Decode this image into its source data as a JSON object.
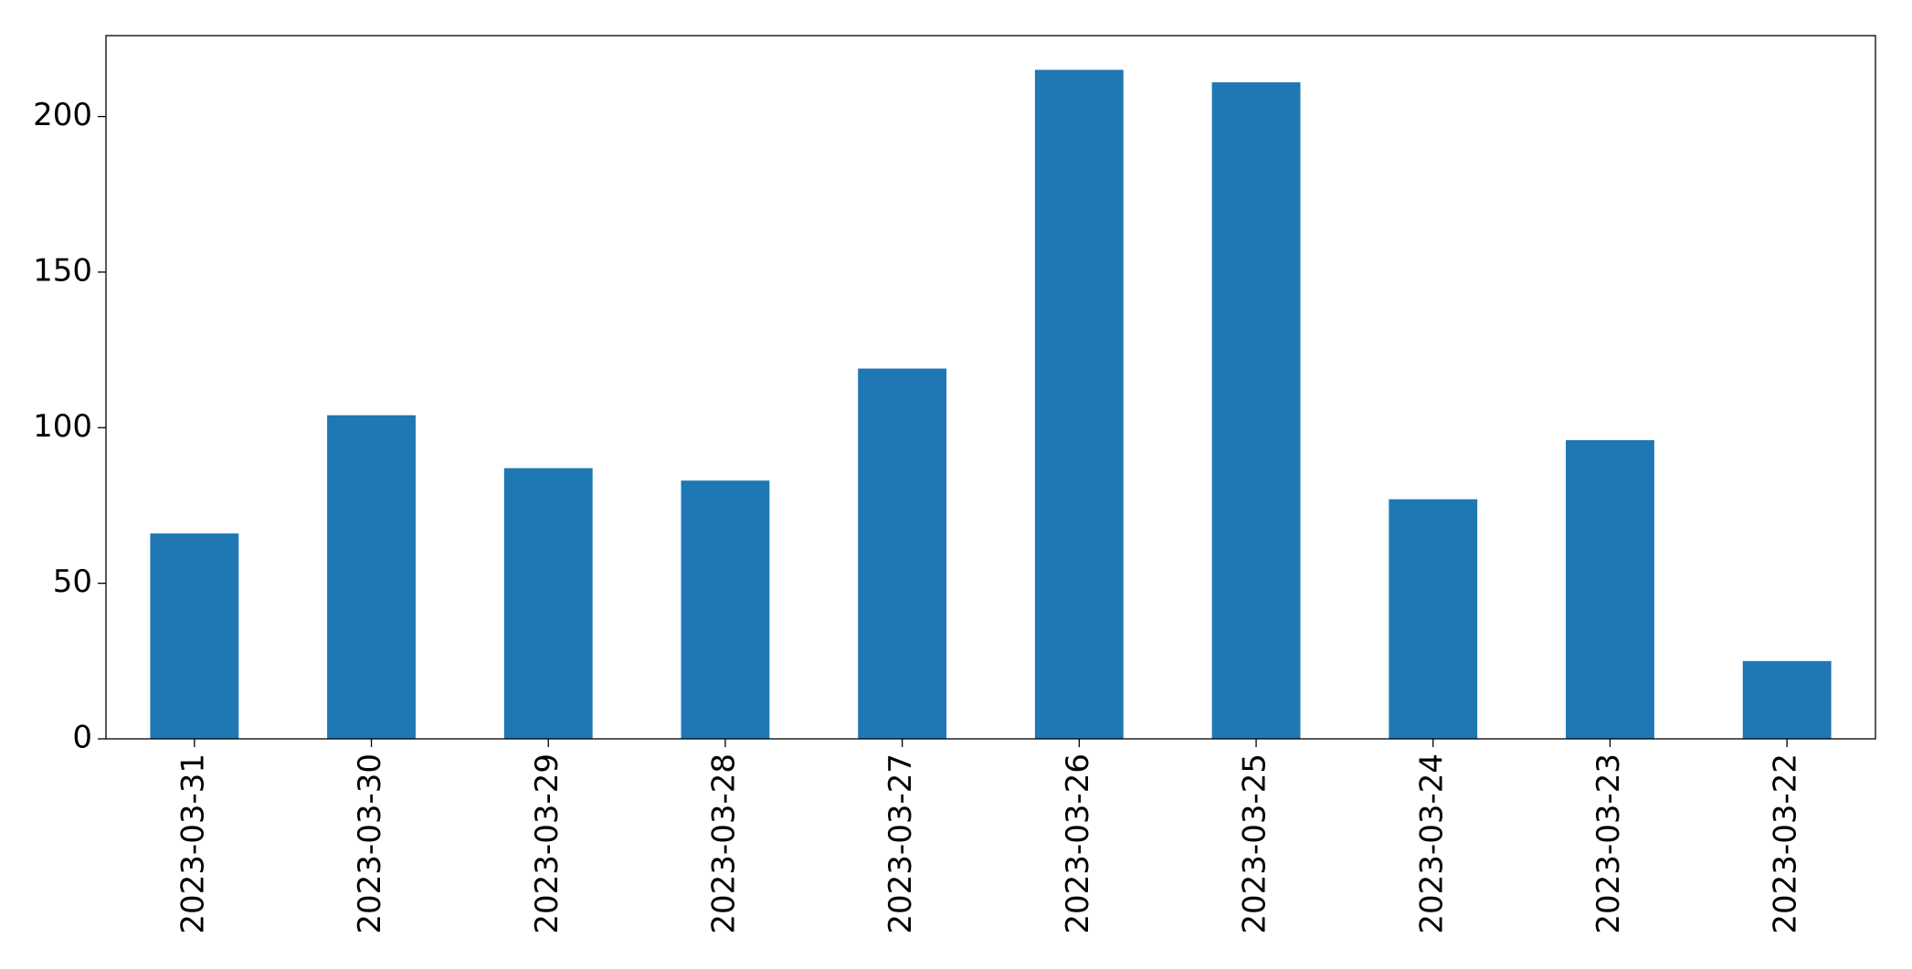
{
  "chart_data": {
    "type": "bar",
    "categories": [
      "2023-03-31",
      "2023-03-30",
      "2023-03-29",
      "2023-03-28",
      "2023-03-27",
      "2023-03-26",
      "2023-03-25",
      "2023-03-24",
      "2023-03-23",
      "2023-03-22"
    ],
    "values": [
      66,
      104,
      87,
      83,
      119,
      215,
      211,
      77,
      96,
      25
    ],
    "color": "#1f77b4",
    "ylim": [
      0,
      226
    ],
    "yticks": [
      0,
      50,
      100,
      150,
      200
    ],
    "grid": false
  }
}
